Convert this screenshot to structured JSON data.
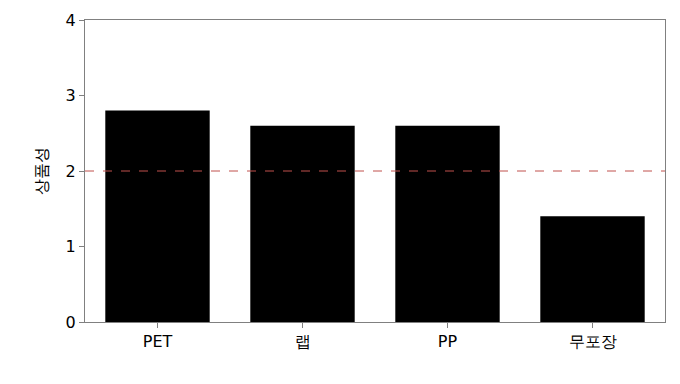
{
  "chart_data": {
    "type": "bar",
    "y_label": "상품성",
    "categories": [
      "PET",
      "랩",
      "PP",
      "무포장"
    ],
    "values": [
      2.8,
      2.6,
      2.6,
      1.4
    ],
    "color": "#000000",
    "ylim": [
      0,
      4
    ],
    "yticks": [
      0,
      1,
      2,
      3,
      4
    ],
    "grid": false,
    "threshold": 2
  }
}
